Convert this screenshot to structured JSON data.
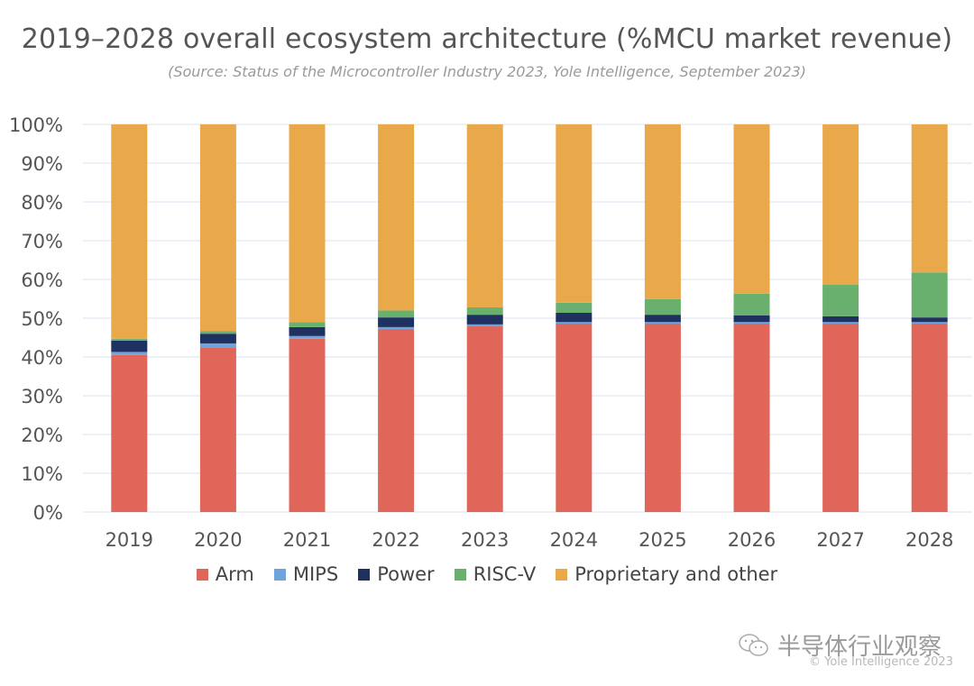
{
  "chart_data": {
    "type": "bar",
    "stacked": true,
    "title": "2019–2028 overall ecosystem architecture (%MCU market revenue)",
    "subtitle": "(Source: Status of the Microcontroller Industry 2023, Yole Intelligence, September 2023)",
    "xlabel": "",
    "ylabel": "",
    "ylim": [
      0,
      100
    ],
    "y_ticks": [
      "0%",
      "10%",
      "20%",
      "30%",
      "40%",
      "50%",
      "60%",
      "70%",
      "80%",
      "90%",
      "100%"
    ],
    "grid": true,
    "legend_position": "bottom",
    "categories": [
      "2019",
      "2020",
      "2021",
      "2022",
      "2023",
      "2024",
      "2025",
      "2026",
      "2027",
      "2028"
    ],
    "series": [
      {
        "name": "Arm",
        "color": "#e0665a",
        "values": [
          40.5,
          42.5,
          44.7,
          47.2,
          47.9,
          48.6,
          48.6,
          48.6,
          48.6,
          48.6
        ]
      },
      {
        "name": "MIPS",
        "color": "#6fa3dc",
        "values": [
          0.8,
          1.0,
          0.7,
          0.5,
          0.5,
          0.4,
          0.4,
          0.4,
          0.4,
          0.4
        ]
      },
      {
        "name": "Power",
        "color": "#1f3160",
        "values": [
          2.9,
          2.5,
          2.3,
          2.5,
          2.5,
          2.4,
          1.9,
          1.7,
          1.5,
          1.2
        ]
      },
      {
        "name": "RISC-V",
        "color": "#69b06e",
        "values": [
          0.5,
          0.7,
          1.3,
          1.8,
          1.9,
          2.6,
          4.0,
          5.6,
          8.1,
          11.6
        ]
      },
      {
        "name": "Proprietary and other",
        "color": "#e9a94b",
        "values": [
          55.3,
          53.3,
          51.0,
          48.0,
          47.2,
          46.0,
          45.1,
          43.7,
          41.4,
          38.2
        ]
      }
    ]
  },
  "watermark": {
    "text": "半导体行业观察",
    "icon": "wechat-icon"
  },
  "copyright": "© Yole Intelligence 2023"
}
